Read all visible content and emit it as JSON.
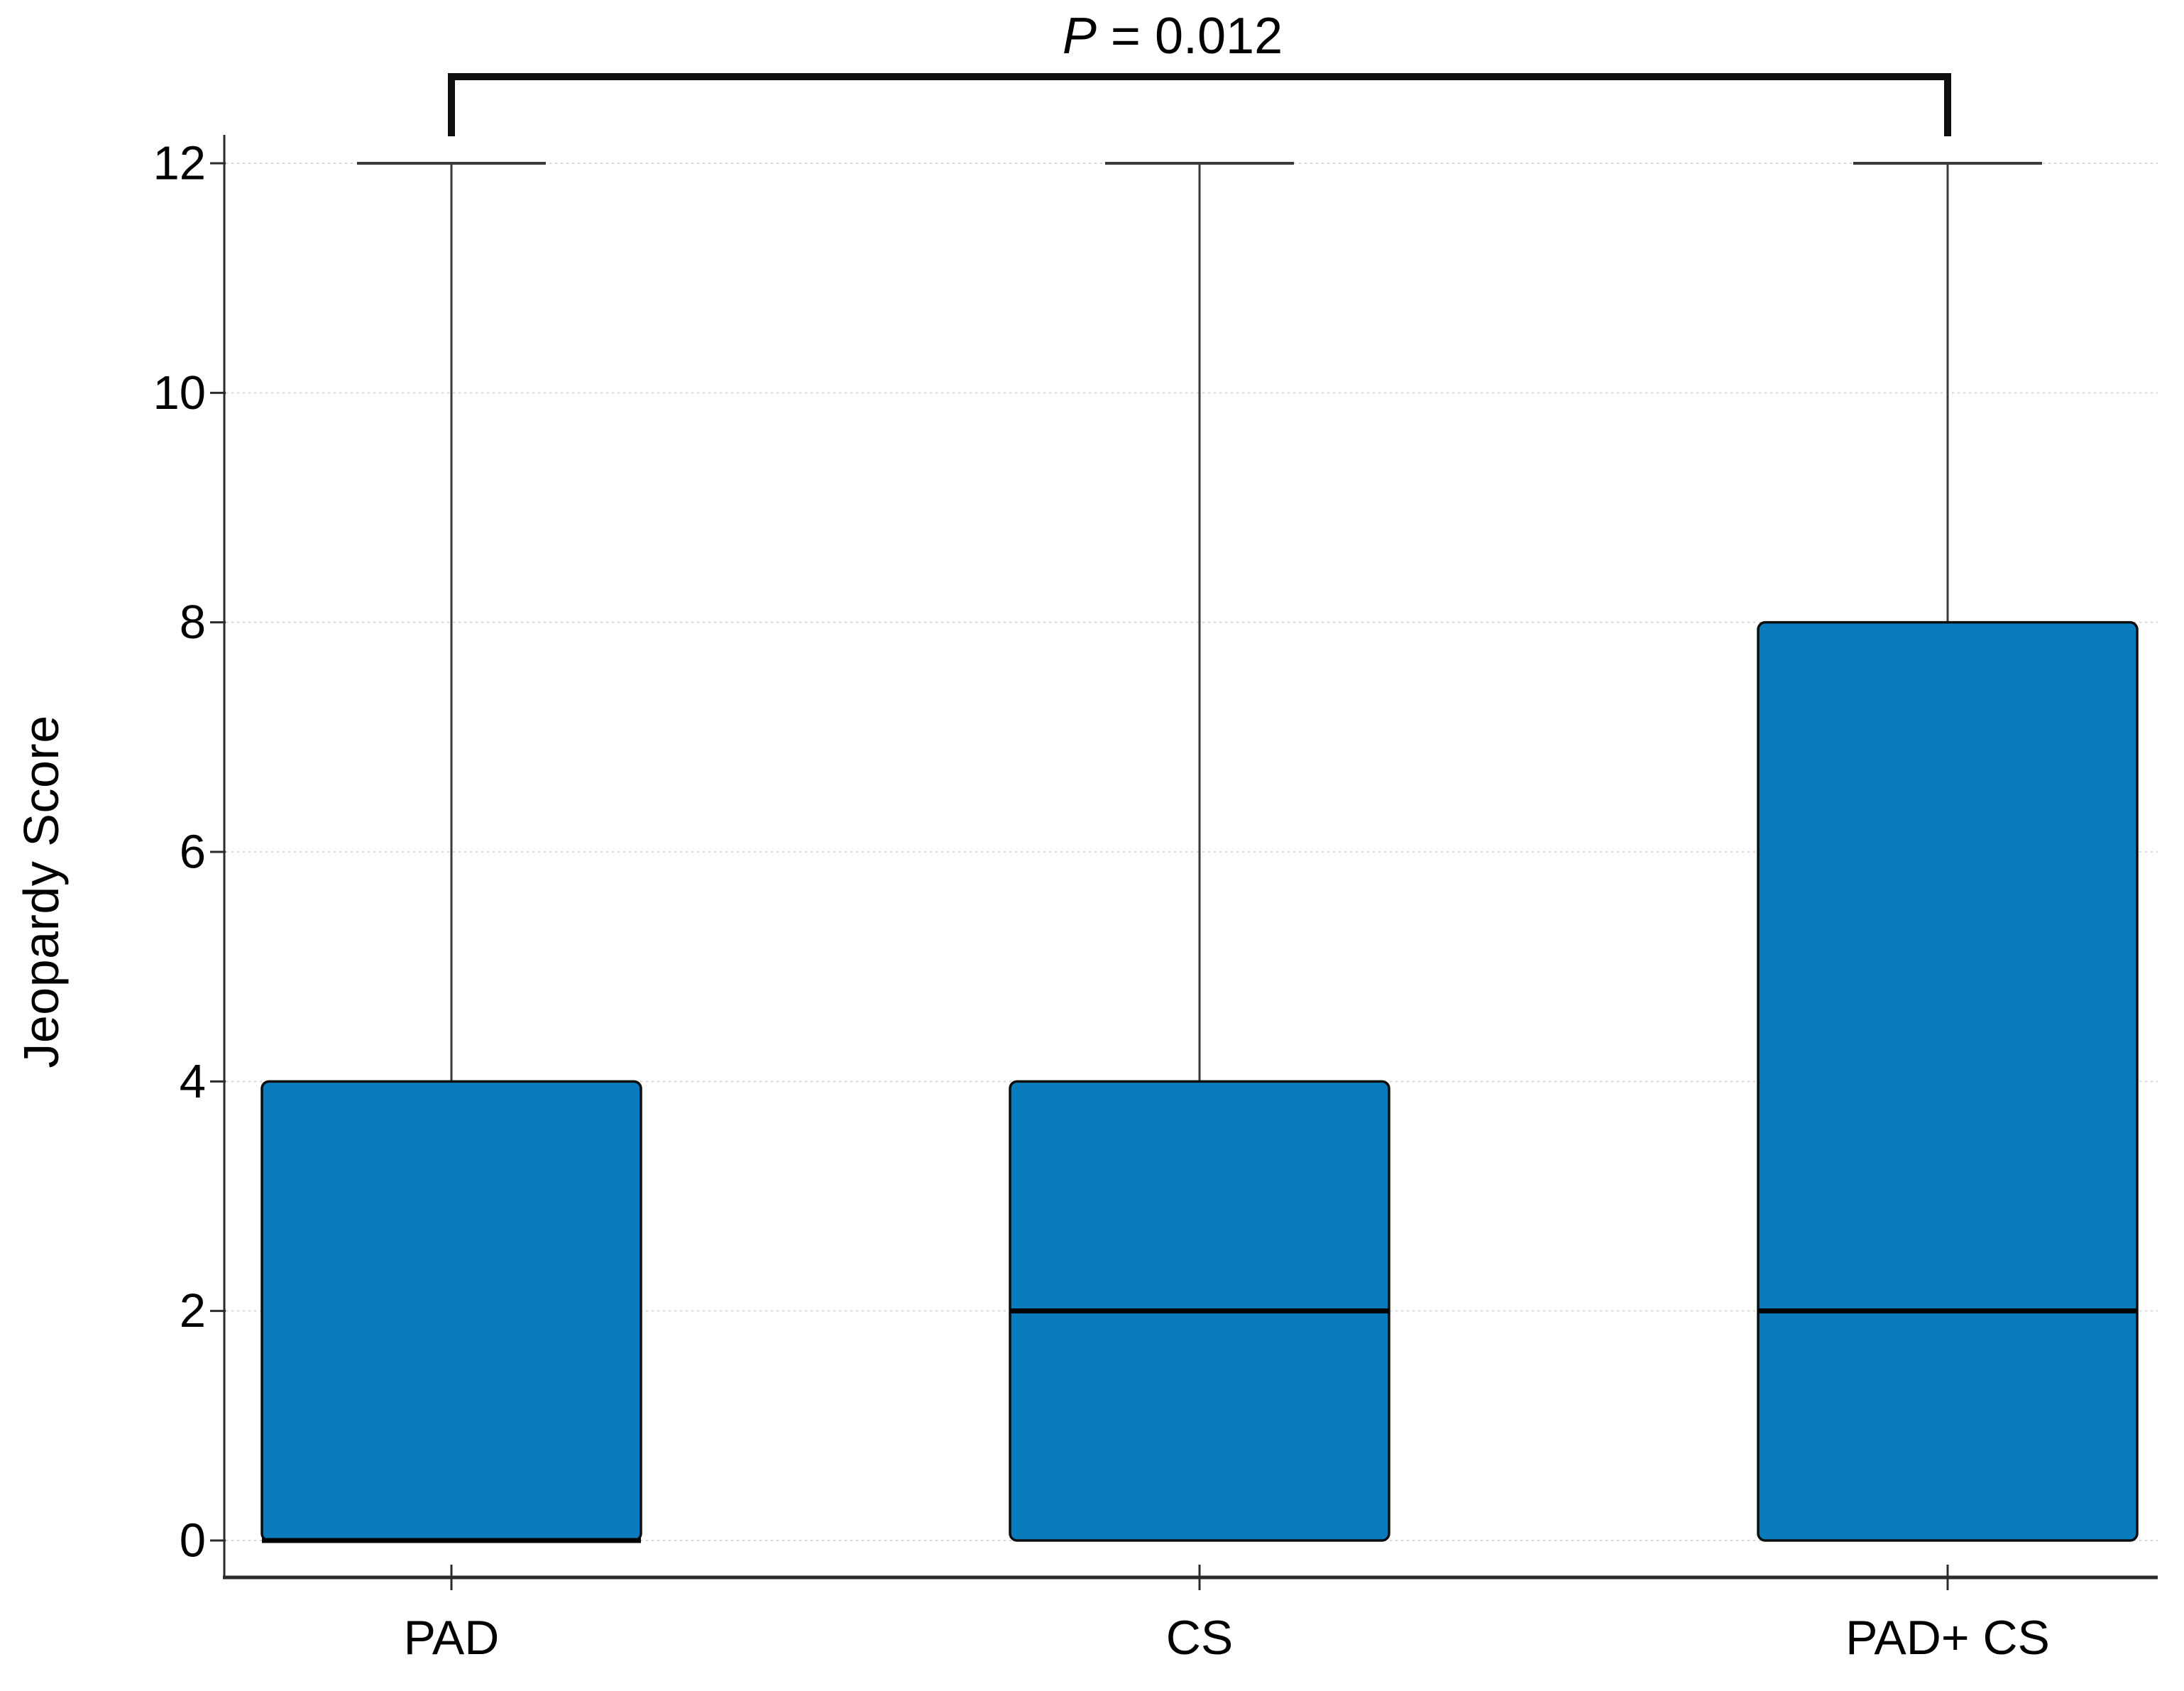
{
  "chart_data": {
    "type": "box",
    "title": "",
    "xlabel": "",
    "ylabel": "Jeopardy Score",
    "categories": [
      "PAD",
      "CS",
      "PAD+ CS"
    ],
    "ylim": [
      0,
      12
    ],
    "yticks": [
      0,
      2,
      4,
      6,
      8,
      10,
      12
    ],
    "grid": "horizontal-dotted",
    "legend": "none",
    "series": [
      {
        "name": "PAD",
        "min": 0,
        "q1": 0,
        "median": 0,
        "q3": 4,
        "max": 12
      },
      {
        "name": "CS",
        "min": 0,
        "q1": 0,
        "median": 2,
        "q3": 4,
        "max": 12
      },
      {
        "name": "PAD+ CS",
        "min": 0,
        "q1": 0,
        "median": 2,
        "q3": 8,
        "max": 12
      }
    ],
    "annotation": {
      "symbol": "P",
      "rest": " = 0.012",
      "full_text": "P = 0.012",
      "compares": [
        "PAD",
        "PAD+ CS"
      ]
    },
    "colors": {
      "box_fill": "#0a7cbe",
      "box_border": "#0d0d0d",
      "median": "#000000",
      "whisker": "#3a3a3a",
      "grid": "#d7d7d7",
      "axis": "#2b2b2b",
      "bracket": "#0d0d0d",
      "text": "#000000",
      "background": "#ffffff"
    }
  }
}
